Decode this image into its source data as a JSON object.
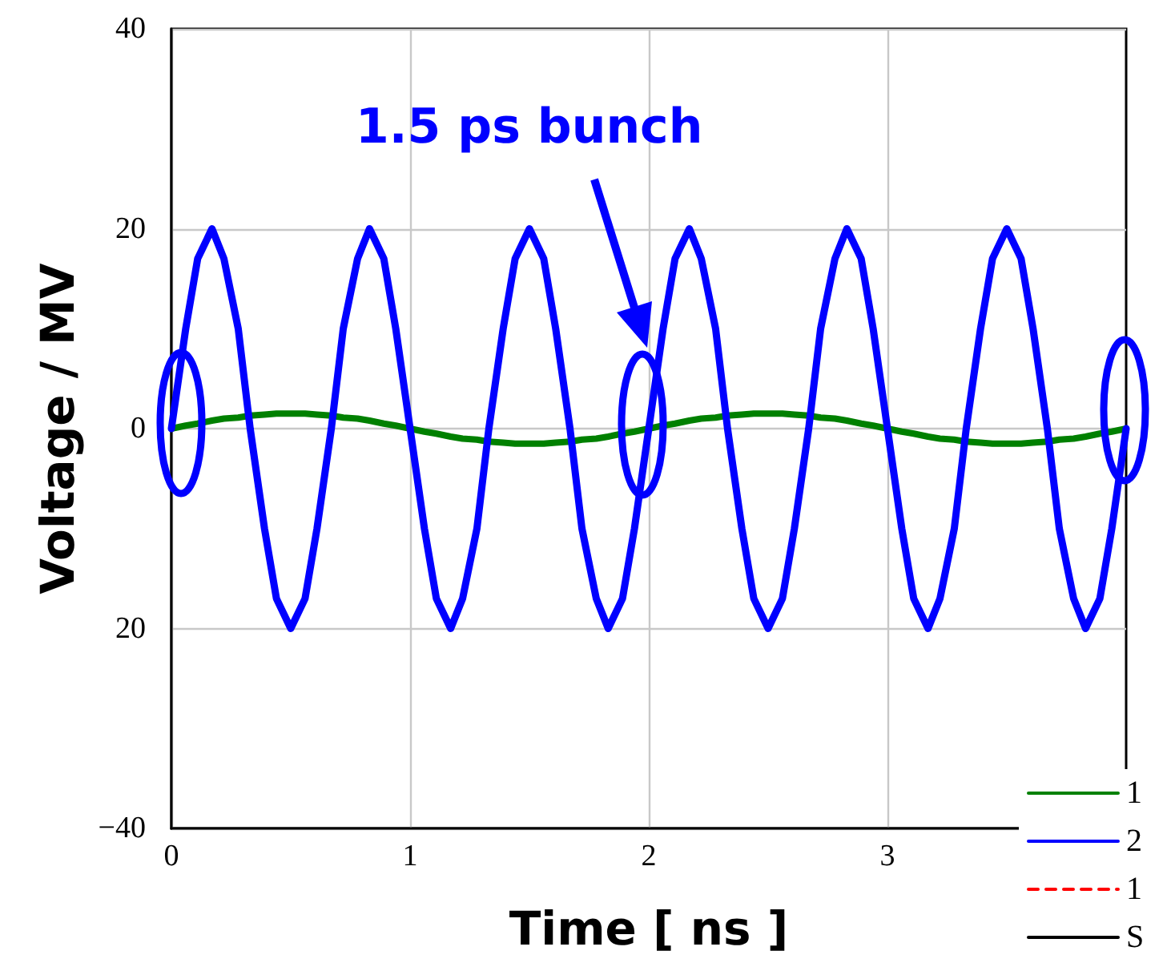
{
  "chart_data": {
    "type": "line",
    "xlabel": "Time [ ns ]",
    "ylabel": "Voltage / MV",
    "x": [
      0,
      0.06,
      0.11,
      0.17,
      0.22,
      0.28,
      0.33,
      0.39,
      0.44,
      0.5,
      0.56,
      0.61,
      0.67,
      0.72,
      0.78,
      0.83,
      0.89,
      0.94,
      1,
      1.06,
      1.11,
      1.17,
      1.22,
      1.28,
      1.33,
      1.39,
      1.44,
      1.5,
      1.56,
      1.61,
      1.67,
      1.72,
      1.78,
      1.83,
      1.89,
      1.94,
      2,
      2.06,
      2.11,
      2.17,
      2.22,
      2.28,
      2.33,
      2.39,
      2.44,
      2.5,
      2.56,
      2.61,
      2.67,
      2.72,
      2.78,
      2.83,
      2.89,
      2.94,
      3,
      3.06,
      3.11,
      3.17,
      3.22,
      3.28,
      3.33,
      3.39,
      3.44,
      3.5,
      3.56,
      3.61,
      3.67,
      3.72,
      3.78,
      3.83,
      3.89,
      3.94,
      4
    ],
    "xlim": [
      0,
      4
    ],
    "xticks": [
      0,
      1,
      2,
      3
    ],
    "ylim": [
      -40,
      40
    ],
    "yticks": [
      {
        "value": -40,
        "label": "−40"
      },
      {
        "value": -20,
        "label": "20"
      },
      0,
      20,
      40
    ],
    "grid": true,
    "legend": "bottom right",
    "marker": "none",
    "annotations": [
      "1.5 ps bunch"
    ],
    "series": [
      {
        "name": "1",
        "color": "#008000",
        "line_style": "solid",
        "values": [
          0,
          0.3,
          0.5,
          0.8,
          1,
          1.1,
          1.3,
          1.4,
          1.5,
          1.5,
          1.5,
          1.4,
          1.3,
          1.1,
          1,
          0.8,
          0.5,
          0.3,
          0,
          -0.3,
          -0.5,
          -0.8,
          -1,
          -1.1,
          -1.3,
          -1.4,
          -1.5,
          -1.5,
          -1.5,
          -1.4,
          -1.3,
          -1.1,
          -1,
          -0.8,
          -0.5,
          -0.3,
          0,
          0.3,
          0.5,
          0.8,
          1,
          1.1,
          1.3,
          1.4,
          1.5,
          1.5,
          1.5,
          1.4,
          1.3,
          1.1,
          1,
          0.8,
          0.5,
          0.3,
          0,
          -0.3,
          -0.5,
          -0.8,
          -1,
          -1.1,
          -1.3,
          -1.4,
          -1.5,
          -1.5,
          -1.5,
          -1.4,
          -1.3,
          -1.1,
          -1,
          -0.8,
          -0.5,
          -0.3,
          0
        ]
      },
      {
        "name": "2",
        "color": "#0000ff",
        "line_style": "solid",
        "values": [
          0,
          10,
          17,
          20,
          17,
          10,
          0,
          -10,
          -17,
          -20,
          -17,
          -10,
          0,
          10,
          17,
          20,
          17,
          10,
          0,
          -10,
          -17,
          -20,
          -17,
          -10,
          0,
          10,
          17,
          20,
          17,
          10,
          0,
          -10,
          -17,
          -20,
          -17,
          -10,
          0,
          10,
          17,
          20,
          17,
          10,
          0,
          -10,
          -17,
          -20,
          -17,
          -10,
          0,
          10,
          17,
          20,
          17,
          10,
          0,
          -10,
          -17,
          -20,
          -17,
          -10,
          0,
          10,
          17,
          20,
          17,
          10,
          0,
          -10,
          -17,
          -20,
          -17,
          -10,
          0
        ]
      },
      {
        "name": "1",
        "color": "#ff0000",
        "line_style": "dashed",
        "values": [
          null,
          null,
          null,
          null,
          null,
          null,
          null,
          null,
          null,
          null,
          null,
          null,
          null,
          null,
          null,
          null,
          null,
          null,
          null,
          null,
          null,
          null,
          null,
          null,
          null,
          null,
          null,
          null,
          null,
          null,
          null,
          null,
          null,
          null,
          null,
          null,
          null,
          null,
          null,
          null,
          null,
          null,
          null,
          null,
          null,
          null,
          null,
          null,
          null,
          null,
          null,
          null,
          null,
          null,
          null,
          null,
          null,
          null,
          null,
          null,
          null,
          null,
          null,
          null,
          null,
          null,
          null,
          null,
          null,
          null,
          null,
          null,
          null
        ]
      },
      {
        "name": "S",
        "color": "#000000",
        "line_style": "solid",
        "values": [
          null,
          null,
          null,
          null,
          null,
          null,
          null,
          null,
          null,
          null,
          null,
          null,
          null,
          null,
          null,
          null,
          null,
          null,
          null,
          null,
          null,
          null,
          null,
          null,
          null,
          null,
          null,
          null,
          null,
          null,
          null,
          null,
          null,
          null,
          null,
          null,
          null,
          null,
          null,
          null,
          null,
          null,
          null,
          null,
          null,
          null,
          null,
          null,
          null,
          null,
          null,
          null,
          null,
          null,
          null,
          null,
          null,
          null,
          null,
          null,
          null,
          null,
          null,
          null,
          null,
          null,
          null,
          null,
          null,
          null,
          null,
          null,
          null
        ]
      }
    ]
  }
}
